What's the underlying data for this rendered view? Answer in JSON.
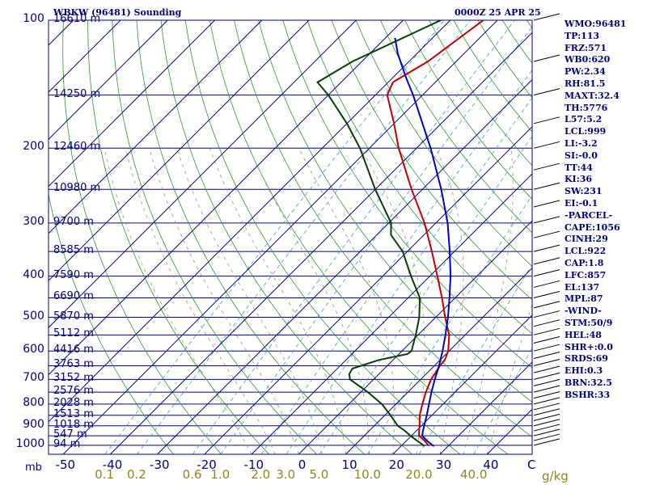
{
  "header": {
    "station_title": "WBKW (96481) Sounding",
    "datetime": "0000Z 25 APR 25"
  },
  "indices": [
    "WMO:96481",
    "TP:113",
    "FRZ:571",
    "WB0:620",
    "PW:2.34",
    "RH:81.5",
    "MAXT:32.4",
    "TH:5776",
    "L57:5.2",
    "LCL:999",
    "LI:-3.2",
    "SI:-0.0",
    "TT:44",
    "KI:36",
    "SW:231",
    "EI:-0.1",
    "-PARCEL-",
    "CAPE:1056",
    "CINH:29",
    "LCL:922",
    "CAP:1.8",
    "LFC:857",
    "EL:137",
    "MPL:87",
    "-WIND-",
    "STM:50/9",
    "HEL:48",
    "SHR+:0.0",
    "SRDS:69",
    "EHI:0.3",
    "BRN:32.5",
    "BSHR:33"
  ],
  "colors": {
    "frame": "#000080",
    "isobar": "#000080",
    "isotherm": "#000080",
    "dry_adiabat": "#2a9a2a",
    "moist_adiabat": "#9a9a60",
    "mixing_ratio": "#3aa0c8",
    "temperature": "#c00000",
    "dewpoint": "#004000",
    "parcel": "#0000c0",
    "mixing_ratio_label": "#8a8a20"
  },
  "chart_data": {
    "type": "line",
    "diagram": "skew-T log-P",
    "pressure_ticks": [
      100,
      200,
      300,
      400,
      500,
      600,
      700,
      800,
      900,
      1000
    ],
    "pressure_tick_labels": [
      "100",
      "200",
      "300",
      "400",
      "500",
      "600",
      "700",
      "800",
      "900",
      "1000"
    ],
    "pressure_unit_label": "mb",
    "height_levels": [
      {
        "p": 100,
        "label": "16610 m"
      },
      {
        "p": 150,
        "label": "14250 m"
      },
      {
        "p": 200,
        "label": "12460 m"
      },
      {
        "p": 250,
        "label": "10980 m"
      },
      {
        "p": 300,
        "label": "9700 m"
      },
      {
        "p": 350,
        "label": "8585 m"
      },
      {
        "p": 400,
        "label": "7590 m"
      },
      {
        "p": 450,
        "label": "6690 m"
      },
      {
        "p": 500,
        "label": "5870 m"
      },
      {
        "p": 550,
        "label": "5112 m"
      },
      {
        "p": 600,
        "label": "4416 m"
      },
      {
        "p": 650,
        "label": "3763 m"
      },
      {
        "p": 700,
        "label": "3152 m"
      },
      {
        "p": 750,
        "label": "2576 m"
      },
      {
        "p": 800,
        "label": "2028 m"
      },
      {
        "p": 850,
        "label": "1513 m"
      },
      {
        "p": 900,
        "label": "1018 m"
      },
      {
        "p": 950,
        "label": "547 m"
      },
      {
        "p": 1000,
        "label": "94 m"
      }
    ],
    "temperature_ticks": [
      -50,
      -40,
      -30,
      -20,
      -10,
      0,
      10,
      20,
      30,
      40
    ],
    "temperature_tick_labels": [
      "-50",
      "-40",
      "-30",
      "-20",
      "-10",
      "0",
      "10",
      "20",
      "30",
      "40"
    ],
    "temperature_unit_label": "C",
    "mixing_ratio_ticks": [
      0.1,
      0.2,
      0.6,
      1.0,
      2.0,
      3.0,
      5.0,
      10.0,
      20.0,
      40.0
    ],
    "mixing_ratio_tick_labels": [
      "0.1",
      "0.2",
      "0.6",
      "1.0",
      "2.0",
      "3.0",
      "5.0",
      "10.0",
      "20.0",
      "40.0"
    ],
    "mixing_ratio_unit_label": "g/kg",
    "series": [
      {
        "key": "temperature",
        "points": [
          [
            1004,
            25.8
          ],
          [
            1000,
            25.6
          ],
          [
            975,
            23.8
          ],
          [
            950,
            21.6
          ],
          [
            925,
            20.6
          ],
          [
            900,
            19.6
          ],
          [
            850,
            17.4
          ],
          [
            800,
            15.6
          ],
          [
            750,
            13.8
          ],
          [
            700,
            12.2
          ],
          [
            650,
            11.2
          ],
          [
            630,
            11.0
          ],
          [
            600,
            9.8
          ],
          [
            550,
            6.6
          ],
          [
            500,
            2.0
          ],
          [
            450,
            -2.8
          ],
          [
            400,
            -8.4
          ],
          [
            350,
            -14.8
          ],
          [
            300,
            -22.4
          ],
          [
            250,
            -32.3
          ],
          [
            200,
            -43.8
          ],
          [
            175,
            -50.0
          ],
          [
            150,
            -57.5
          ],
          [
            140,
            -59.0
          ],
          [
            125,
            -56.0
          ],
          [
            100,
            -53.0
          ]
        ]
      },
      {
        "key": "dewpoint",
        "points": [
          [
            1004,
            25.0
          ],
          [
            1000,
            24.6
          ],
          [
            975,
            22.2
          ],
          [
            950,
            19.8
          ],
          [
            925,
            17.6
          ],
          [
            900,
            15.0
          ],
          [
            850,
            11.2
          ],
          [
            800,
            7.0
          ],
          [
            750,
            1.5
          ],
          [
            700,
            -5.0
          ],
          [
            680,
            -6.3
          ],
          [
            660,
            -6.8
          ],
          [
            630,
            -3.0
          ],
          [
            610,
            1.8
          ],
          [
            600,
            2.0
          ],
          [
            550,
            -0.5
          ],
          [
            500,
            -3.5
          ],
          [
            450,
            -7.5
          ],
          [
            400,
            -14.0
          ],
          [
            350,
            -21.0
          ],
          [
            320,
            -27.0
          ],
          [
            300,
            -29.5
          ],
          [
            250,
            -40.0
          ],
          [
            200,
            -52.0
          ],
          [
            175,
            -60.0
          ],
          [
            150,
            -70.0
          ],
          [
            140,
            -75.0
          ],
          [
            125,
            -72.0
          ],
          [
            100,
            -62.0
          ]
        ]
      },
      {
        "key": "parcel",
        "points": [
          [
            1004,
            27.0
          ],
          [
            1000,
            26.5
          ],
          [
            975,
            24.3
          ],
          [
            950,
            22.3
          ],
          [
            925,
            21.4
          ],
          [
            900,
            20.6
          ],
          [
            850,
            18.9
          ],
          [
            800,
            17.0
          ],
          [
            750,
            15.0
          ],
          [
            700,
            13.0
          ],
          [
            650,
            11.0
          ],
          [
            600,
            8.6
          ],
          [
            550,
            5.8
          ],
          [
            500,
            2.6
          ],
          [
            450,
            -1.2
          ],
          [
            400,
            -5.6
          ],
          [
            350,
            -11.0
          ],
          [
            300,
            -17.5
          ],
          [
            250,
            -26.0
          ],
          [
            200,
            -37.0
          ],
          [
            150,
            -52.0
          ],
          [
            137,
            -57.0
          ],
          [
            120,
            -64.0
          ],
          [
            110,
            -68.0
          ]
        ]
      }
    ]
  }
}
